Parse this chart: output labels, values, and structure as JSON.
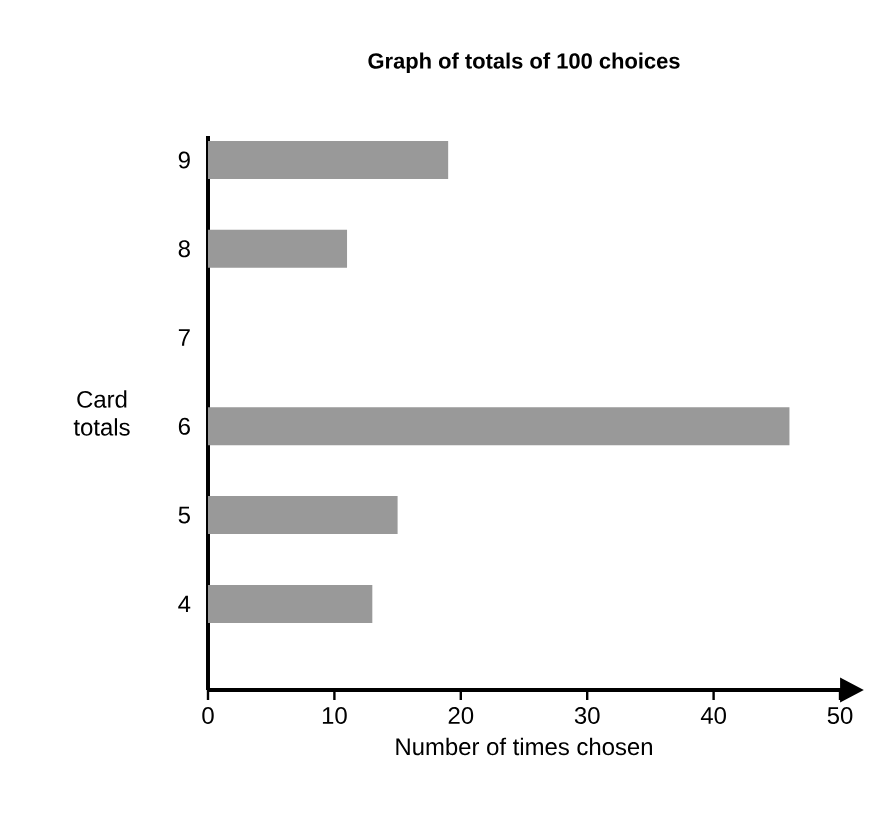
{
  "chart_data": {
    "type": "bar",
    "orientation": "horizontal",
    "title": "Graph of totals of 100 choices",
    "xlabel": "Number of times chosen",
    "ylabel": "Card totals",
    "categories": [
      "9",
      "8",
      "7",
      "6",
      "5",
      "4"
    ],
    "values": [
      19,
      11,
      0,
      46,
      15,
      13
    ],
    "color": "#999999",
    "xlim": [
      0,
      50
    ],
    "xticks": [
      0,
      10,
      20,
      30,
      40,
      50
    ],
    "grid": false
  }
}
